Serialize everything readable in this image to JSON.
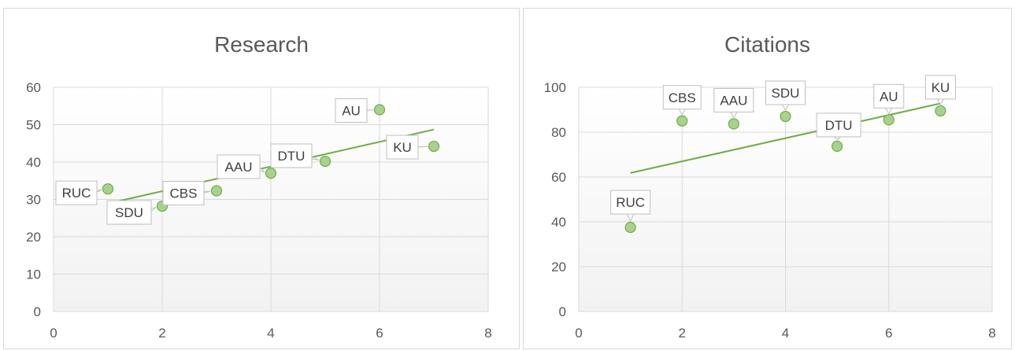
{
  "colors": {
    "marker_fill": "#a9d18e",
    "marker_stroke": "#70ad47",
    "trendline": "#70ad47",
    "grid": "#d9d9d9"
  },
  "chart_data": [
    {
      "type": "scatter",
      "title": "Research",
      "xlabel": "",
      "ylabel": "",
      "xlim": [
        0,
        8
      ],
      "ylim": [
        0,
        60
      ],
      "xticks": [
        0,
        2,
        4,
        6,
        8
      ],
      "yticks": [
        0,
        10,
        20,
        30,
        40,
        50,
        60
      ],
      "grid": true,
      "points": [
        {
          "label": "RUC",
          "x": 1,
          "y": 32.8
        },
        {
          "label": "SDU",
          "x": 2,
          "y": 28.2
        },
        {
          "label": "CBS",
          "x": 3,
          "y": 32.3
        },
        {
          "label": "DTU",
          "x": 5,
          "y": 40.2
        },
        {
          "label": "AU",
          "x": 6,
          "y": 54.0
        },
        {
          "label": "KU",
          "x": 7,
          "y": 44.2
        },
        {
          "label": "AAU",
          "x": 4,
          "y": 37.0
        }
      ],
      "trendline": {
        "type": "linear",
        "x": [
          1,
          7
        ],
        "y": [
          28.9,
          48.7
        ]
      }
    },
    {
      "type": "scatter",
      "title": "Citations",
      "xlabel": "",
      "ylabel": "",
      "xlim": [
        0,
        8
      ],
      "ylim": [
        0,
        100
      ],
      "xticks": [
        0,
        2,
        4,
        6,
        8
      ],
      "yticks": [
        0,
        20,
        40,
        60,
        80,
        100
      ],
      "grid": true,
      "points": [
        {
          "label": "RUC",
          "x": 1,
          "y": 37.5
        },
        {
          "label": "CBS",
          "x": 2,
          "y": 85.0
        },
        {
          "label": "AAU",
          "x": 3,
          "y": 83.7
        },
        {
          "label": "SDU",
          "x": 4,
          "y": 87.0
        },
        {
          "label": "DTU",
          "x": 5,
          "y": 73.7
        },
        {
          "label": "AU",
          "x": 6,
          "y": 85.5
        },
        {
          "label": "KU",
          "x": 7,
          "y": 89.5
        }
      ],
      "trendline": {
        "type": "linear",
        "x": [
          1,
          7
        ],
        "y": [
          61.8,
          92.8
        ]
      }
    }
  ]
}
